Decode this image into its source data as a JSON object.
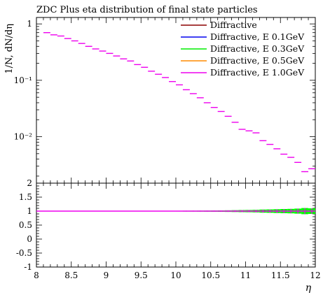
{
  "chart_data": {
    "type": "scatter",
    "title": "ZDC Plus eta distribution of final state particles",
    "xlabel": "η",
    "ylabel": "1/N, dN/dη",
    "xlim": [
      8,
      12
    ],
    "main": {
      "yscale": "log",
      "ylim": [
        0.0015,
        1.3
      ],
      "yticks": [
        {
          "value": 1,
          "label": "1"
        },
        {
          "value": 0.1,
          "label": "10⁻¹"
        },
        {
          "value": 0.01,
          "label": "10⁻²"
        }
      ]
    },
    "ratio": {
      "ylim": [
        -1,
        2
      ],
      "yticks": [
        "2",
        "1.5",
        "1",
        "0.5",
        "0",
        "-0.5",
        "-1"
      ]
    },
    "xticks": [
      "8",
      "8.5",
      "9",
      "9.5",
      "10",
      "10.5",
      "11",
      "11.5",
      "12"
    ],
    "bin_width": 0.1,
    "x": [
      8.15,
      8.25,
      8.35,
      8.45,
      8.55,
      8.65,
      8.75,
      8.85,
      8.95,
      9.05,
      9.15,
      9.25,
      9.35,
      9.45,
      9.55,
      9.65,
      9.75,
      9.85,
      9.95,
      10.05,
      10.15,
      10.25,
      10.35,
      10.45,
      10.55,
      10.65,
      10.75,
      10.85,
      10.95,
      11.05,
      11.15,
      11.25,
      11.35,
      11.45,
      11.55,
      11.65,
      11.75,
      11.85,
      11.95
    ],
    "values": [
      0.7,
      0.64,
      0.61,
      0.55,
      0.5,
      0.45,
      0.4,
      0.36,
      0.33,
      0.3,
      0.27,
      0.24,
      0.22,
      0.19,
      0.17,
      0.145,
      0.128,
      0.112,
      0.095,
      0.083,
      0.068,
      0.058,
      0.049,
      0.04,
      0.033,
      0.028,
      0.023,
      0.018,
      0.0135,
      0.0127,
      0.0117,
      0.0085,
      0.0073,
      0.0061,
      0.0049,
      0.0043,
      0.0035,
      0.0024,
      0.0027
    ],
    "ratio_band_halfwidth": [
      0.004,
      0.004,
      0.004,
      0.004,
      0.004,
      0.004,
      0.005,
      0.005,
      0.005,
      0.006,
      0.006,
      0.007,
      0.007,
      0.008,
      0.008,
      0.009,
      0.01,
      0.011,
      0.012,
      0.013,
      0.015,
      0.016,
      0.018,
      0.02,
      0.022,
      0.025,
      0.028,
      0.032,
      0.037,
      0.04,
      0.045,
      0.055,
      0.06,
      0.067,
      0.075,
      0.08,
      0.09,
      0.11,
      0.1
    ],
    "series": [
      {
        "name": "Diffractive",
        "color": "#8b0000"
      },
      {
        "name": "Diffractive, E 0.1GeV",
        "color": "#0000ee"
      },
      {
        "name": "Diffractive, E 0.3GeV",
        "color": "#00ee00"
      },
      {
        "name": "Diffractive, E 0.5GeV",
        "color": "#ff8c00"
      },
      {
        "name": "Diffractive, E 1.0GeV",
        "color": "#ee00ee"
      }
    ],
    "legend_position": "top-right"
  }
}
